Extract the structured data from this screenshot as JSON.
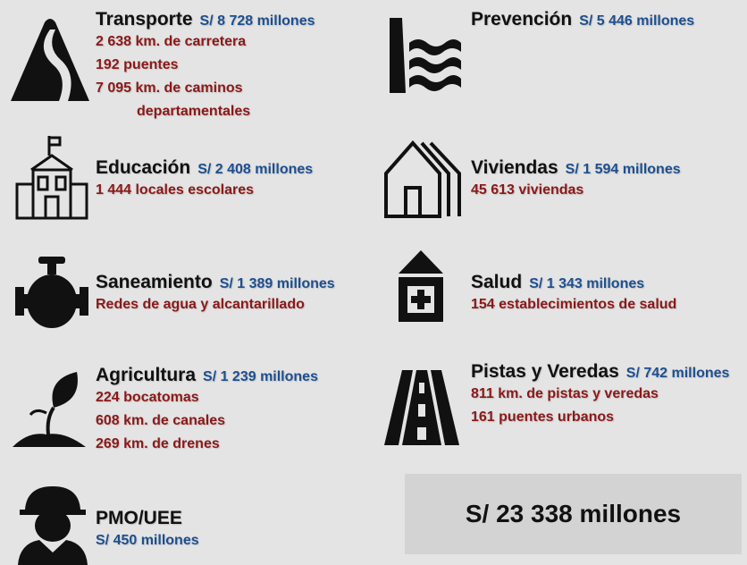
{
  "items": [
    {
      "title": "Transporte",
      "amount": "S/ 8 728 millones",
      "details": [
        "2 638 km. de carretera",
        "192 puentes",
        "7 095 km. de caminos",
        "departamentales"
      ]
    },
    {
      "title": "Prevención",
      "amount": "S/ 5 446 millones",
      "details": []
    },
    {
      "title": "Educación",
      "amount": "S/ 2 408 millones",
      "details": [
        "1 444 locales escolares"
      ]
    },
    {
      "title": "Viviendas",
      "amount": "S/ 1 594 millones",
      "details": [
        "45 613 viviendas"
      ]
    },
    {
      "title": "Saneamiento",
      "amount": "S/ 1 389 millones",
      "details": [
        "Redes de agua y alcantarillado"
      ]
    },
    {
      "title": "Salud",
      "amount": "S/ 1 343 millones",
      "details": [
        "154 establecimientos de salud"
      ]
    },
    {
      "title": "Agricultura",
      "amount": "S/ 1 239 millones",
      "details": [
        "224 bocatomas",
        "608 km. de canales",
        "269 km. de drenes"
      ]
    },
    {
      "title": "Pistas y Veredas",
      "amount": "S/ 742 millones",
      "details": [
        "811 km. de pistas y veredas",
        "161 puentes urbanos"
      ]
    },
    {
      "title": "PMO/UEE",
      "amount": "S/ 450 millones",
      "details": []
    }
  ],
  "total": "S/ 23 338 millones"
}
